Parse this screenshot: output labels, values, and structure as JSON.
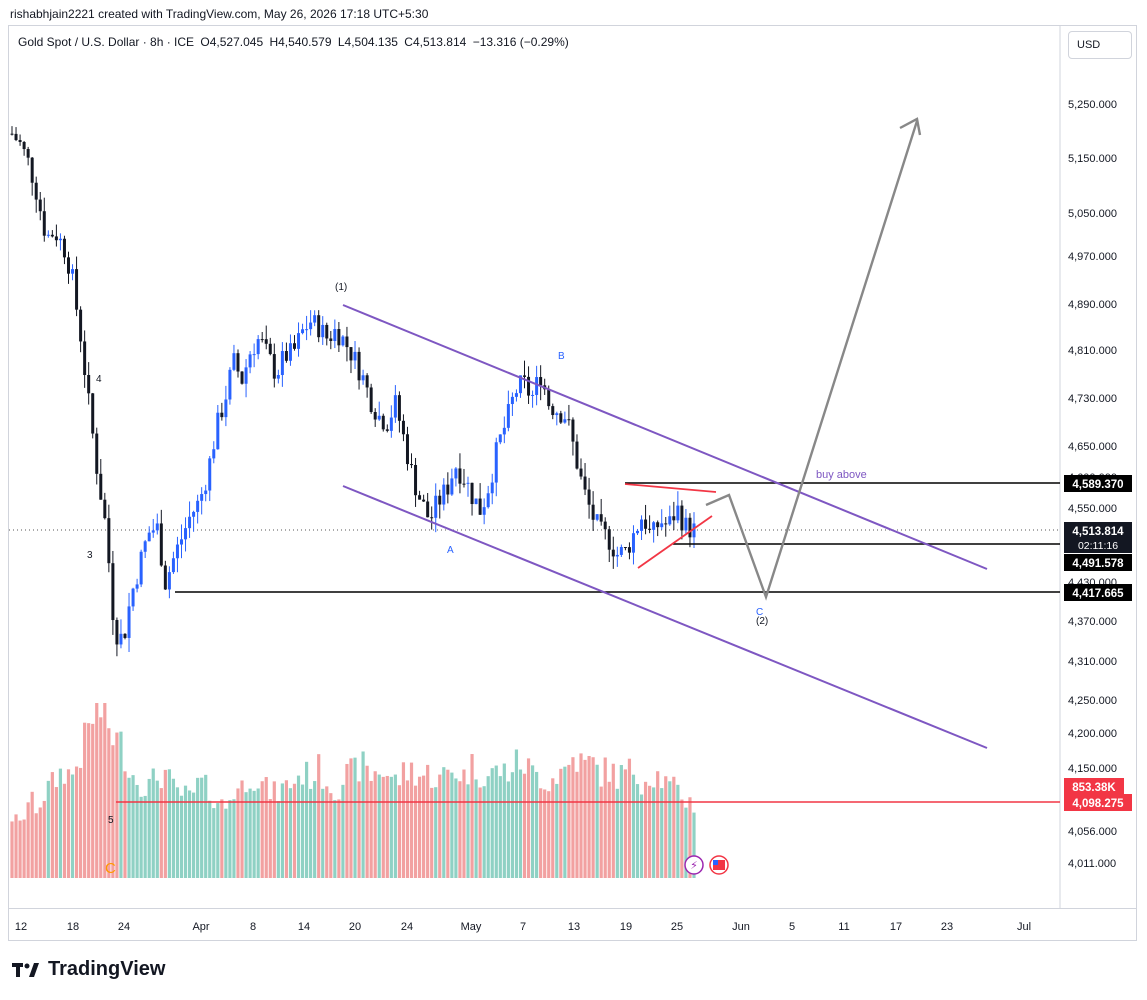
{
  "header": {
    "attribution": "rishabhjain2221 created with TradingView.com, May 26, 2026 17:18 UTC+5:30",
    "symbol": "Gold Spot / U.S. Dollar · 8h · ICE",
    "open": "O4,527.045",
    "high": "H4,540.579",
    "low": "L4,504.135",
    "close": "C4,513.814",
    "change": "−13.316 (−0.29%)",
    "currency": "USD"
  },
  "footer": {
    "brand": "TradingView"
  },
  "colors": {
    "up": "#2962ff",
    "down": "#131722",
    "vol_up": "#8fd1c4",
    "vol_down": "#f2a1a1",
    "channel": "#7e57c2",
    "triangle": "#f23645",
    "projection": "#888888",
    "level": "#000000"
  },
  "chart_data": {
    "type": "candlestick",
    "y_axis_ticks": [
      "5,250.000",
      "5,150.000",
      "5,050.000",
      "4,970.000",
      "4,890.000",
      "4,810.000",
      "4,730.000",
      "4,650.000",
      "4,600.000",
      "4,550.000",
      "4,430.000",
      "4,370.000",
      "4,310.000",
      "4,250.000",
      "4,200.000",
      "4,150.000",
      "4,056.000",
      "4,011.000"
    ],
    "x_axis_ticks": [
      "12",
      "18",
      "24",
      "Apr",
      "8",
      "14",
      "20",
      "24",
      "May",
      "7",
      "13",
      "19",
      "25",
      "Jun",
      "5",
      "11",
      "17",
      "23",
      "Jul"
    ],
    "price_labels": {
      "buy_level": "4,589.370",
      "last_price": "4,513.814",
      "countdown": "02:11:16",
      "support_1": "4,491.578",
      "support_2": "4,417.665",
      "volume": "853.38K",
      "red_line": "4,098.275"
    },
    "annotations": {
      "wave_1": "(1)",
      "wave_2": "(2)",
      "wave_A": "A",
      "wave_B": "B",
      "wave_C_blue": "C",
      "wave_C_orange": "C",
      "wave_3": "3",
      "wave_4": "4",
      "wave_5": "5",
      "buy_above": "buy above"
    },
    "close_path": [
      5195,
      5175,
      5140,
      5080,
      5005,
      5015,
      4990,
      4940,
      4840,
      4720,
      4610,
      4520,
      4360,
      4340,
      4410,
      4460,
      4510,
      4520,
      4430,
      4470,
      4505,
      4540,
      4560,
      4610,
      4680,
      4730,
      4790,
      4760,
      4810,
      4830,
      4800,
      4770,
      4800,
      4805,
      4840,
      4860,
      4850,
      4830,
      4845,
      4825,
      4800,
      4770,
      4730,
      4700,
      4690,
      4720,
      4660,
      4600,
      4560,
      4530,
      4560,
      4580,
      4620,
      4600,
      4570,
      4545,
      4590,
      4650,
      4690,
      4740,
      4755,
      4730,
      4770,
      4720,
      4710,
      4700,
      4640,
      4580,
      4540,
      4510,
      4500,
      4475,
      4480,
      4510,
      4540,
      4500,
      4530,
      4520,
      4550,
      4520,
      4514
    ],
    "volume_path": [
      0.35,
      0.3,
      0.45,
      0.4,
      0.5,
      0.55,
      0.62,
      0.58,
      0.7,
      0.85,
      1.0,
      0.9,
      0.8,
      0.75,
      0.6,
      0.55,
      0.52,
      0.58,
      0.6,
      0.5,
      0.48,
      0.45,
      0.55,
      0.5,
      0.45,
      0.4,
      0.5,
      0.52,
      0.6,
      0.55,
      0.5,
      0.48,
      0.52,
      0.55,
      0.6,
      0.58,
      0.62,
      0.55,
      0.5,
      0.58,
      0.6,
      0.65,
      0.58,
      0.62,
      0.6,
      0.55,
      0.6,
      0.62,
      0.58,
      0.6,
      0.55,
      0.6,
      0.62,
      0.58,
      0.64,
      0.6,
      0.58,
      0.62,
      0.6,
      0.65,
      0.66,
      0.6,
      0.58,
      0.55,
      0.6,
      0.62,
      0.7,
      0.64,
      0.66,
      0.6,
      0.62,
      0.58,
      0.6,
      0.62,
      0.55,
      0.6,
      0.58,
      0.52,
      0.5,
      0.45,
      0.42
    ]
  }
}
